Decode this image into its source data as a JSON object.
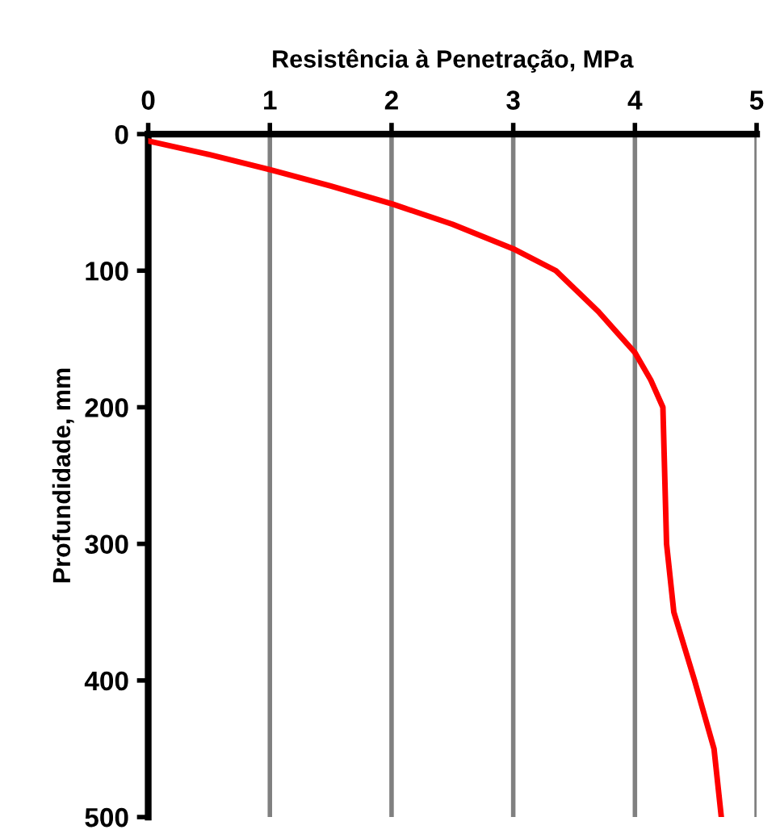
{
  "chart_data": {
    "type": "line",
    "xlabel": "Resistência à Penetração, MPa",
    "ylabel": "Profundidade, mm",
    "x": [
      0,
      0.5,
      1.0,
      1.5,
      2.0,
      2.5,
      3.0,
      3.35,
      3.7,
      4.0,
      4.13,
      4.23,
      4.26,
      4.32,
      4.49,
      4.65,
      4.71
    ],
    "series": [
      {
        "color": "#ff0000",
        "values": [
          5,
          15,
          26,
          38,
          51,
          66,
          84,
          100,
          130,
          160,
          180,
          200,
          300,
          350,
          400,
          450,
          500
        ]
      }
    ],
    "xlim": [
      0,
      5
    ],
    "xticks": [
      0,
      1,
      2,
      3,
      4,
      5
    ],
    "ylim": [
      500,
      0
    ],
    "yticks": [
      0,
      100,
      200,
      300,
      400,
      500
    ],
    "grid": "x",
    "marker": "none",
    "line_style": "solid"
  }
}
